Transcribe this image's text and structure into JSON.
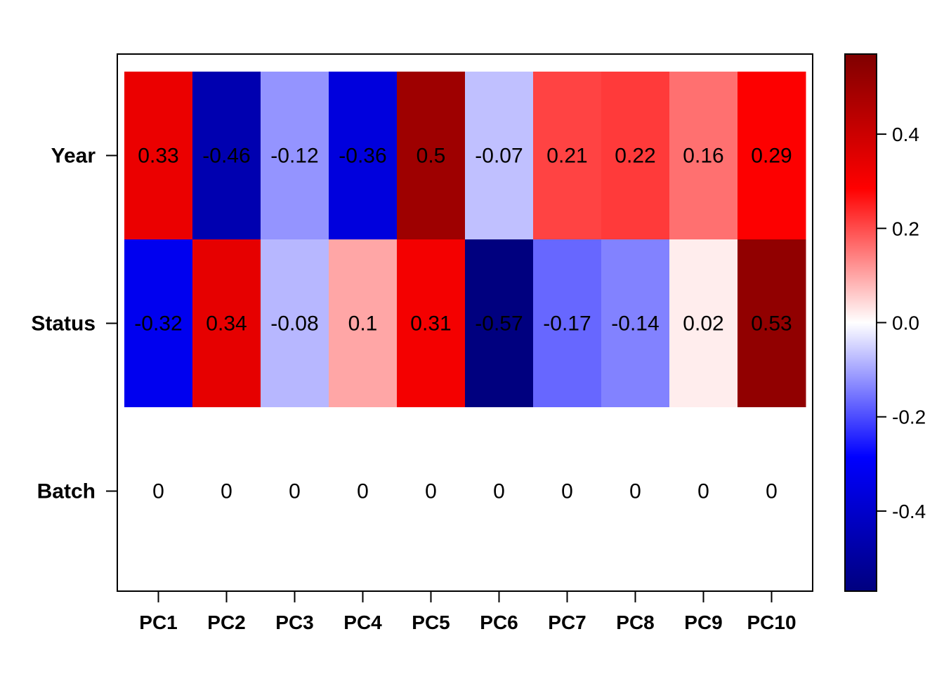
{
  "chart_data": {
    "type": "heatmap",
    "rows": [
      "Year",
      "Status",
      "Batch"
    ],
    "columns": [
      "PC1",
      "PC2",
      "PC3",
      "PC4",
      "PC5",
      "PC6",
      "PC7",
      "PC8",
      "PC9",
      "PC10"
    ],
    "values": [
      [
        0.33,
        -0.46,
        -0.12,
        -0.36,
        0.5,
        -0.07,
        0.21,
        0.22,
        0.16,
        0.29
      ],
      [
        -0.32,
        0.34,
        -0.08,
        0.1,
        0.31,
        -0.57,
        -0.17,
        -0.14,
        0.02,
        0.53
      ],
      [
        0,
        0,
        0,
        0,
        0,
        0,
        0,
        0,
        0,
        0
      ]
    ],
    "cell_labels": [
      [
        "0.33",
        "-0.46",
        "-0.12",
        "-0.36",
        "0.5",
        "-0.07",
        "0.21",
        "0.22",
        "0.16",
        "0.29"
      ],
      [
        "-0.32",
        "0.34",
        "-0.08",
        "0.1",
        "0.31",
        "-0.57",
        "-0.17",
        "-0.14",
        "0.02",
        "0.53"
      ],
      [
        "0",
        "0",
        "0",
        "0",
        "0",
        "0",
        "0",
        "0",
        "0",
        "0"
      ]
    ],
    "colorbar": {
      "range": [
        -0.57,
        0.57
      ],
      "ticks": [
        0.4,
        0.2,
        0.0,
        -0.2,
        -0.4
      ],
      "tick_labels": [
        "0.4",
        "0.2",
        "0.0",
        "-0.2",
        "-0.4"
      ],
      "colors": [
        "#00007F",
        "#0000FF",
        "#FFFFFF",
        "#FF0000",
        "#7F0000"
      ]
    }
  }
}
